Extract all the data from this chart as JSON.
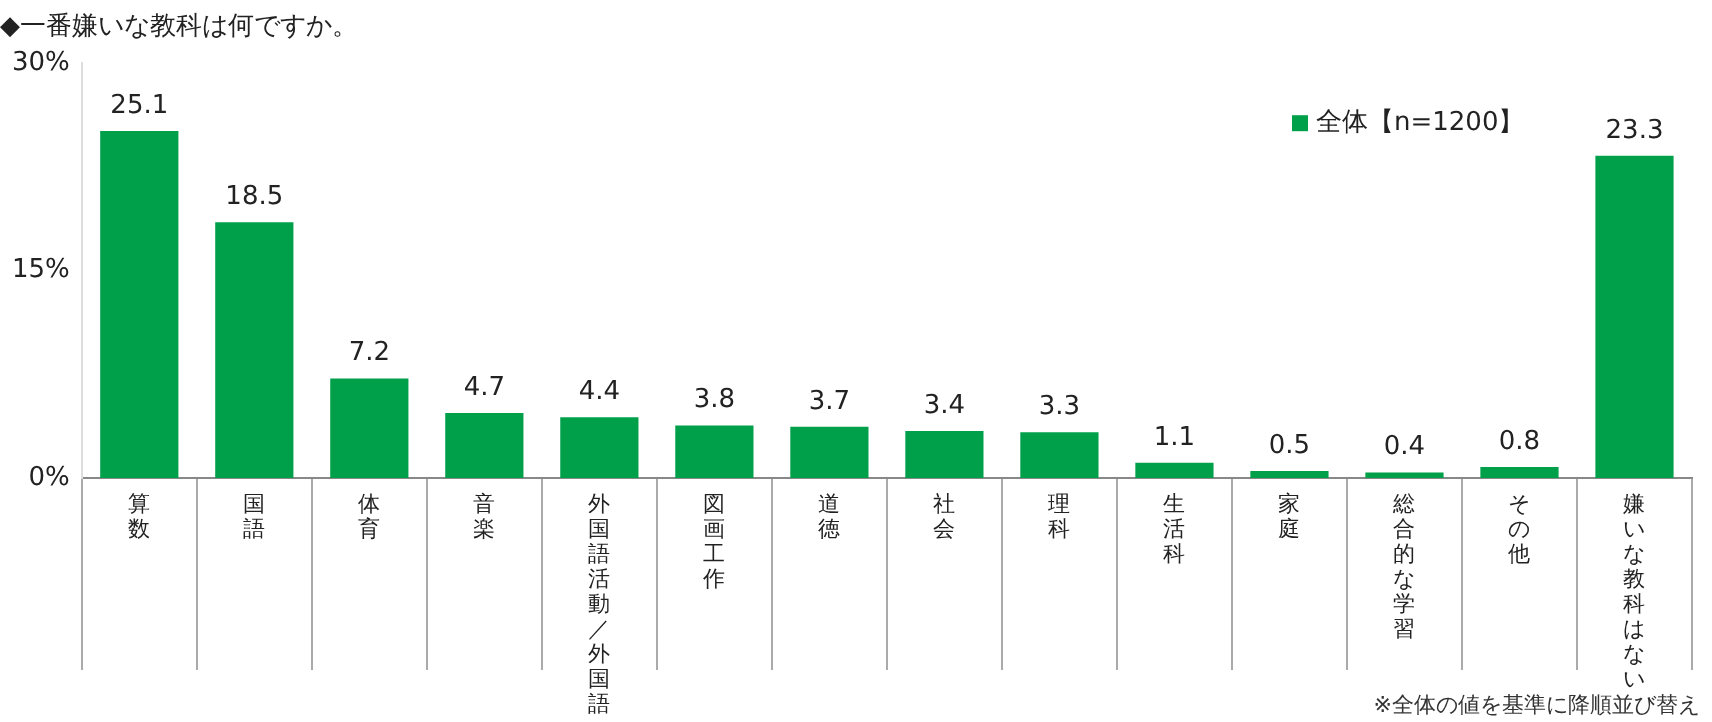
{
  "chart_data": {
    "type": "bar",
    "title": "◆一番嫌いな教科は何ですか。",
    "categories": [
      "算数",
      "国語",
      "体育",
      "音楽",
      "外国語活動／外国語",
      "図画工作",
      "道徳",
      "社会",
      "理科",
      "生活科",
      "家庭",
      "総合的な学習",
      "その他",
      "嫌いな教科はない"
    ],
    "series": [
      {
        "name": "全体【n=1200】",
        "color": "#00a04a",
        "values": [
          25.1,
          18.5,
          7.2,
          4.7,
          4.4,
          3.8,
          3.7,
          3.4,
          3.3,
          1.1,
          0.5,
          0.4,
          0.8,
          23.3
        ]
      }
    ],
    "ylim": [
      0,
      30
    ],
    "yticks": [
      {
        "value": 0,
        "label": "0%"
      },
      {
        "value": 15,
        "label": "15%"
      },
      {
        "value": 30,
        "label": "30%"
      }
    ],
    "data_labels": true,
    "legend": "top right",
    "annotations": [
      "※全体の値を基準に降順並び替え"
    ]
  }
}
